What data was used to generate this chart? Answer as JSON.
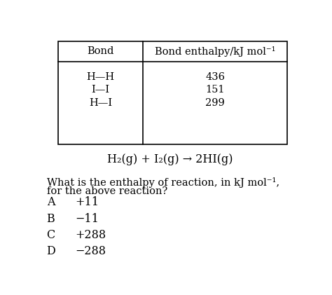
{
  "bg_color": "#ffffff",
  "table_bonds": [
    "H—H",
    "I—I",
    "H—I"
  ],
  "table_enthalpies": [
    "436",
    "151",
    "299"
  ],
  "col_header_1": "Bond",
  "col_header_2": "Bond enthalpy/kJ mol⁻¹",
  "equation": "H₂(g) + I₂(g) → 2HI(g)",
  "question_line1": "What is the enthalpy of reaction, in kJ mol⁻¹,",
  "question_line2": "for the above reaction?",
  "options": [
    [
      "A",
      "+11"
    ],
    [
      "B",
      "−11"
    ],
    [
      "C",
      "+288"
    ],
    [
      "D",
      "−288"
    ]
  ],
  "font_family": "serif",
  "font_size_table_header": 10.5,
  "font_size_table_body": 10.5,
  "font_size_equation": 11.5,
  "font_size_question": 10.5,
  "font_size_options": 11.5
}
